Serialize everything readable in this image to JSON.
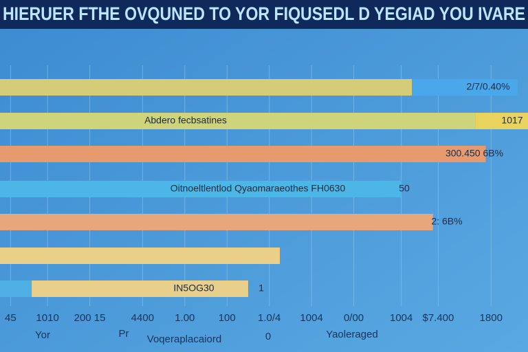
{
  "chart_data": {
    "type": "hbar",
    "title": "HIERUER FTHE OVQUNED TO YOR FIQUSEDL D YEGIAD YOU IVARE",
    "categories": [
      null,
      null,
      null,
      null,
      null,
      null,
      null
    ],
    "series": [
      {
        "colors": [
          "#d6cc78",
          "#cfd37a",
          "#e79a6e",
          "#4cb6e6",
          "#e8a77a",
          "#e9cf88",
          "#4fb0e4"
        ],
        "values": [
          78,
          90,
          92,
          76,
          82,
          53,
          6
        ]
      },
      {
        "colors": [
          "#4aa8ea",
          "#ead35c",
          null,
          null,
          null,
          null,
          "#e8cf8a"
        ],
        "values": [
          20,
          10,
          null,
          null,
          null,
          null,
          41
        ]
      }
    ],
    "bar_labels": [
      null,
      "Abdero fecbsatines",
      null,
      "Oitnoeltlentlod Qyaomaraeothes  FH0630",
      null,
      null,
      "IN5OG30"
    ],
    "end_labels": [
      "2/7/0.40%",
      "1017",
      "300.450  6B%",
      "50",
      "2:  6B%",
      null,
      "1"
    ],
    "xlim": [
      0,
      100
    ],
    "xticks": [
      {
        "value": 2,
        "label": "45"
      },
      {
        "value": 9,
        "label": "1010"
      },
      {
        "value": 17,
        "label": "200 15"
      },
      {
        "value": 27,
        "label": "4400"
      },
      {
        "value": 35,
        "label": "1.00"
      },
      {
        "value": 43,
        "label": "100"
      },
      {
        "value": 51,
        "label": "1.0/4"
      },
      {
        "value": 59,
        "label": "1004"
      },
      {
        "value": 67,
        "label": "0/00"
      },
      {
        "value": 76,
        "label": "1004"
      },
      {
        "value": 83,
        "label": "$7.400"
      },
      {
        "value": 93,
        "label": "1800"
      }
    ],
    "xlabel": "Voqeraplacaiord",
    "footer_texts": [
      "Yor",
      "Pr",
      "0",
      "Yaoleraged"
    ],
    "grid": true
  }
}
